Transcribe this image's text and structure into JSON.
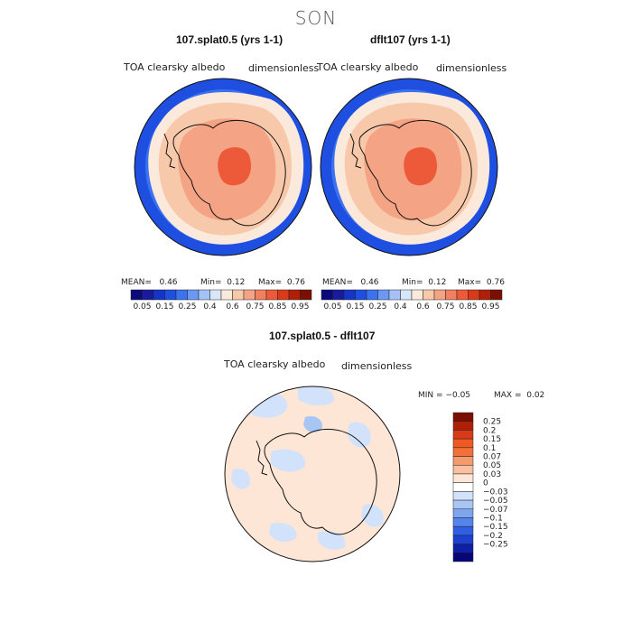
{
  "season": "SON",
  "panels": [
    {
      "title": "107.splat0.5 (yrs 1-1)",
      "variable": "TOA clearsky albedo",
      "units": "dimensionless",
      "stats": {
        "mean_label": "MEAN=",
        "mean": "0.46",
        "min_label": "Min=",
        "min": "0.12",
        "max_label": "Max=",
        "max": "0.76"
      }
    },
    {
      "title": "dflt107 (yrs 1-1)",
      "variable": "TOA clearsky albedo",
      "units": "dimensionless",
      "stats": {
        "mean_label": "MEAN=",
        "mean": "0.46",
        "min_label": "Min=",
        "min": "0.12",
        "max_label": "Max=",
        "max": "0.76"
      }
    }
  ],
  "colorbar": {
    "colors": [
      "#0a0a7a",
      "#1a1a9e",
      "#1535c8",
      "#1e4fe0",
      "#3b72ee",
      "#6a98f2",
      "#a4c2f5",
      "#d8e6fa",
      "#fbe9dc",
      "#f8c8ab",
      "#f4a484",
      "#f18060",
      "#ec5a3a",
      "#d83a1a",
      "#b01f08",
      "#7a0f02"
    ],
    "ticks": [
      "0.05",
      "0.15",
      "0.25",
      "0.4",
      "0.6",
      "0.75",
      "0.85",
      "0.95"
    ]
  },
  "diff": {
    "title": "107.splat0.5 - dflt107",
    "variable": "TOA clearsky albedo",
    "units": "dimensionless",
    "min_label": "MIN =",
    "min": "−0.05",
    "max_label": "MAX =",
    "max": "0.02",
    "legend_colors": [
      "#7a0f02",
      "#b01f08",
      "#d83a1a",
      "#f05a20",
      "#f2703a",
      "#f49a6c",
      "#f8c0a0",
      "#fde6d6",
      "#ffffff",
      "#d2e2fa",
      "#a8c6f4",
      "#7ea6f0",
      "#5584ec",
      "#2f60e4",
      "#1c40d0",
      "#0f20a8",
      "#06067a"
    ],
    "legend_labels": [
      "0.25",
      "0.2",
      "0.15",
      "0.1",
      "0.07",
      "0.05",
      "0.03",
      "0",
      "−0.03",
      "−0.05",
      "−0.07",
      "−0.1",
      "−0.15",
      "−0.2",
      "−0.25"
    ]
  }
}
